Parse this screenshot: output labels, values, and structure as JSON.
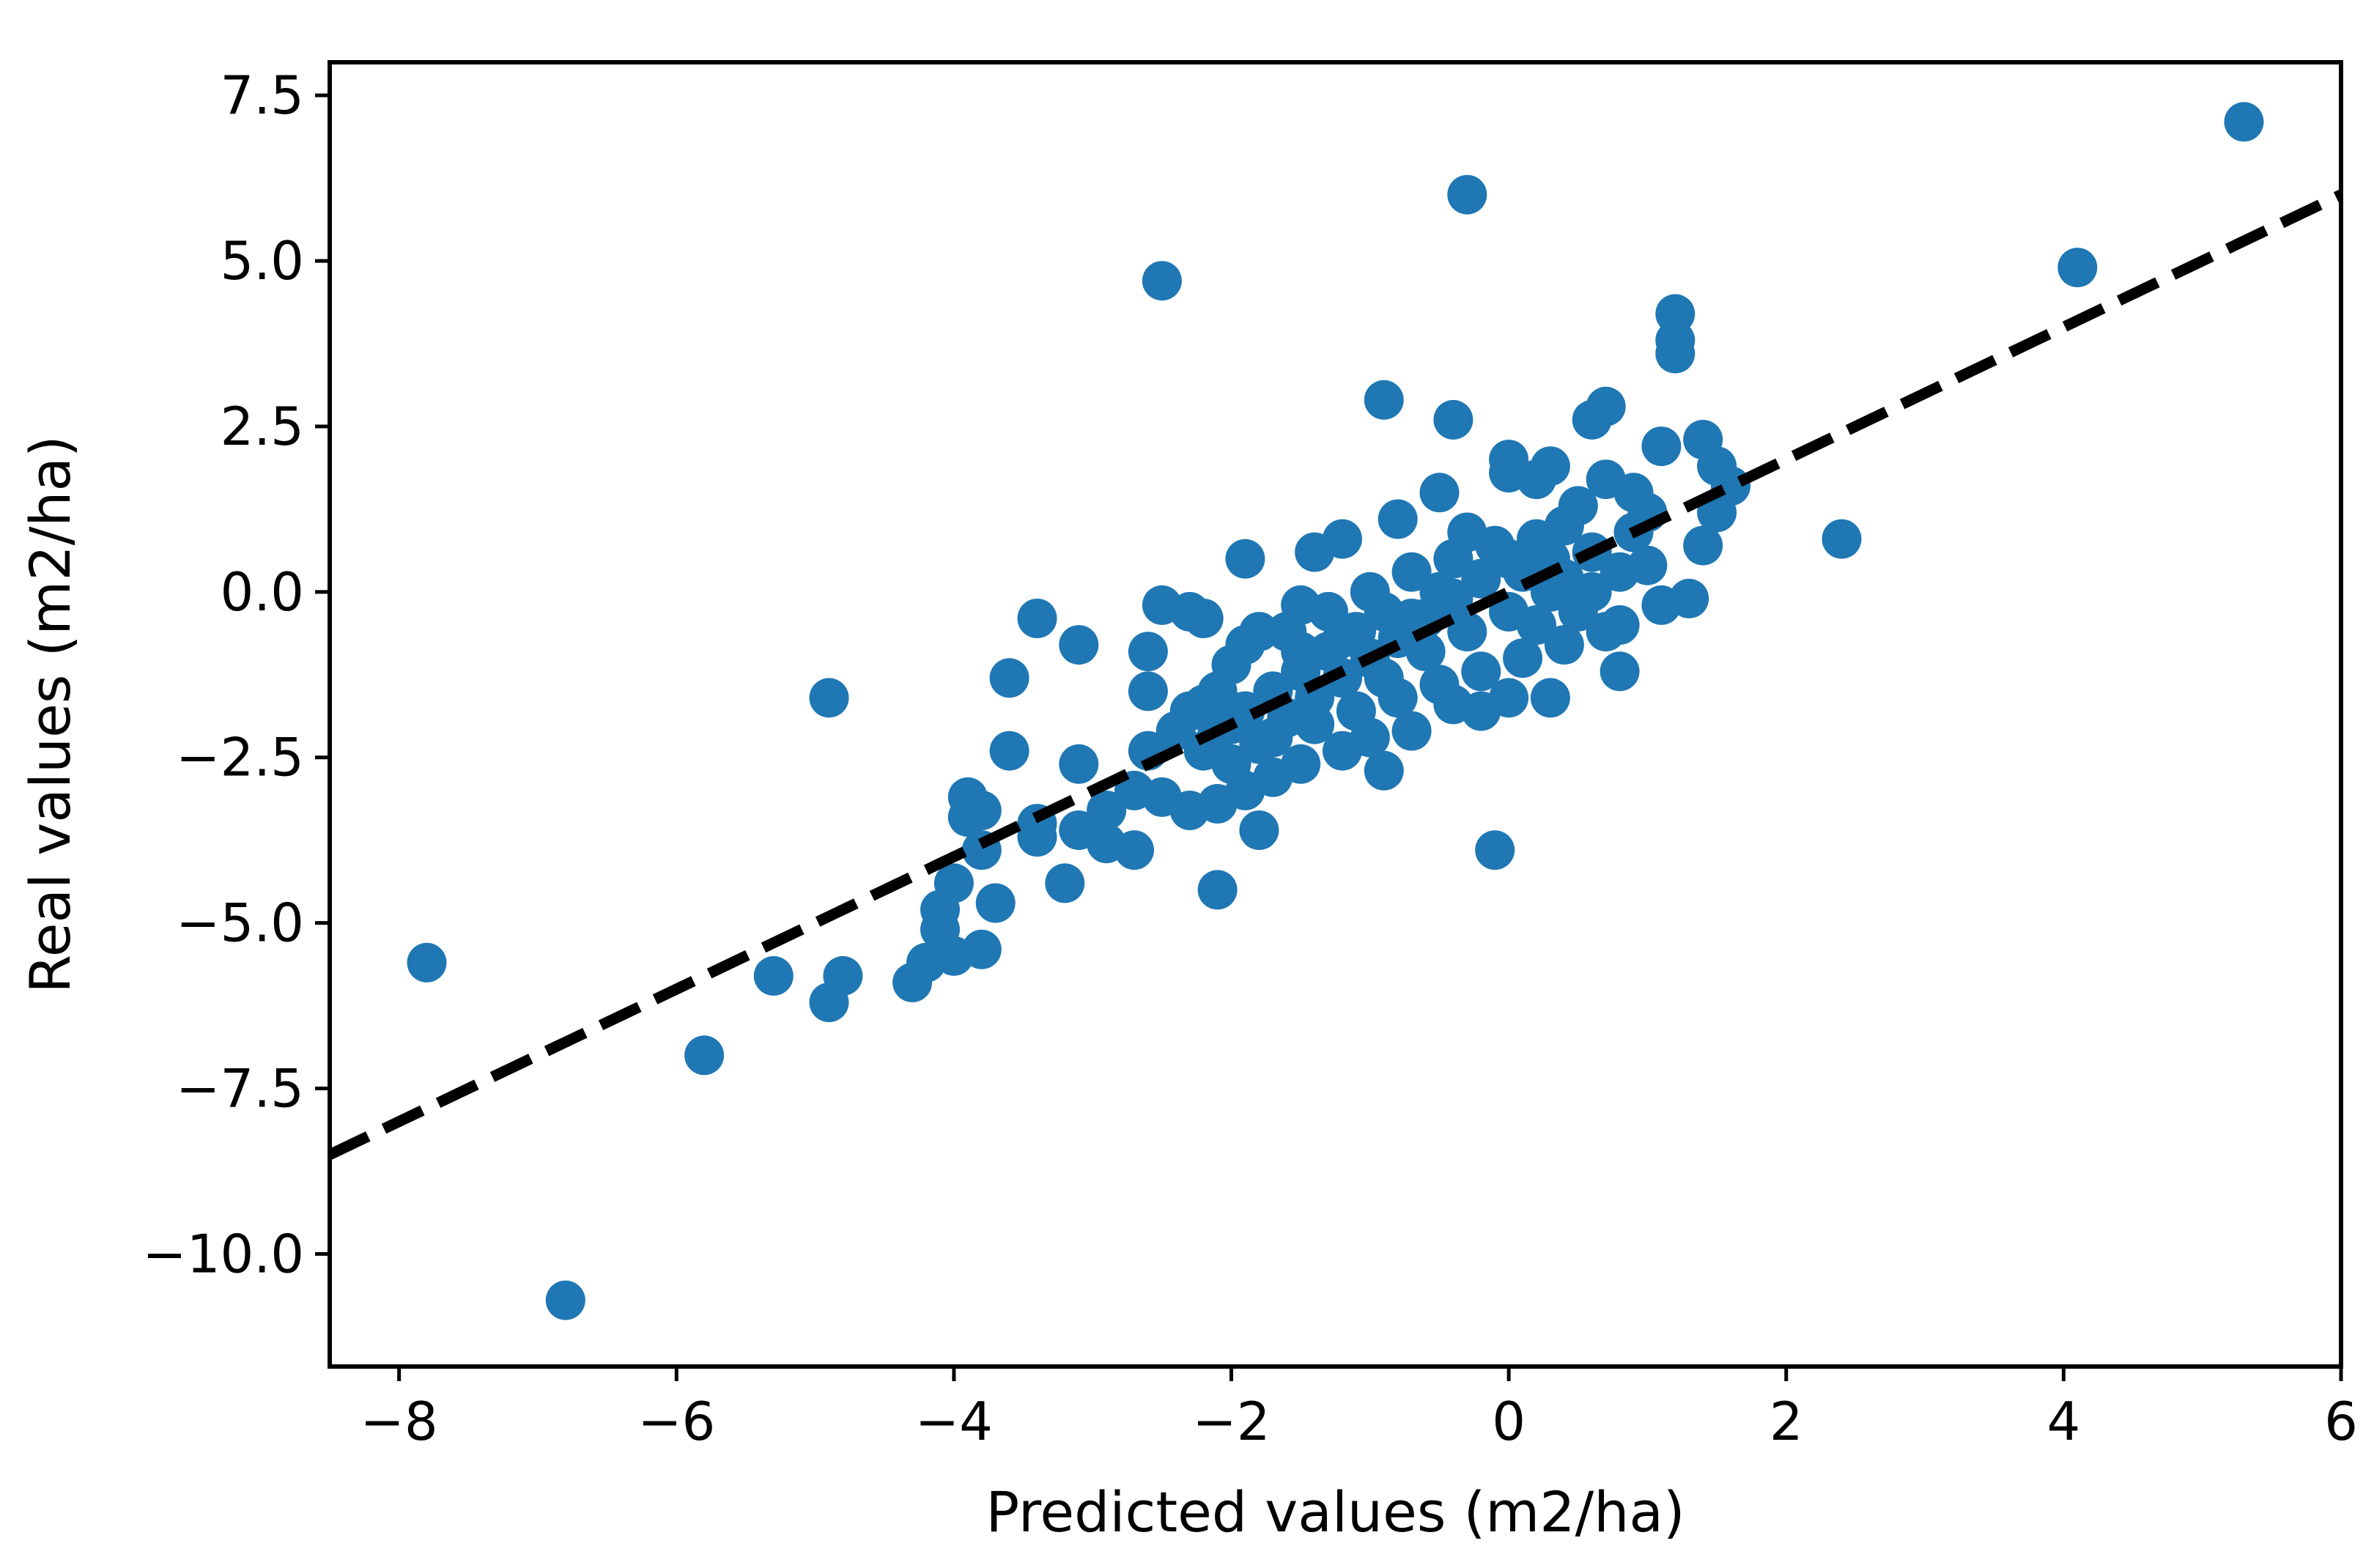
{
  "chart_data": {
    "type": "scatter",
    "title": "",
    "xlabel": "Predicted values (m2/ha)",
    "ylabel": "Real values (m2/ha)",
    "xlim": [
      -8.5,
      6.0
    ],
    "ylim": [
      -11.7,
      8.0
    ],
    "xticks": [
      -8,
      -6,
      -4,
      -2,
      0,
      2,
      4,
      6
    ],
    "xtick_labels": [
      "−8",
      "−6",
      "−4",
      "−2",
      "0",
      "2",
      "4",
      "6"
    ],
    "yticks": [
      -10.0,
      -7.5,
      -5.0,
      -2.5,
      0.0,
      2.5,
      5.0,
      7.5
    ],
    "ytick_labels": [
      "−10.0",
      "−7.5",
      "−5.0",
      "−2.5",
      "0.0",
      "2.5",
      "5.0",
      "7.5"
    ],
    "grid": false,
    "colors": {
      "points": "#1f77b4",
      "line": "#000000"
    },
    "reference_line": {
      "style": "dashed",
      "slope": 1.0,
      "intercept": 0.0
    },
    "series": [
      {
        "name": "samples",
        "points": [
          [
            5.3,
            7.1
          ],
          [
            4.1,
            4.9
          ],
          [
            -0.3,
            6.0
          ],
          [
            -2.5,
            4.7
          ],
          [
            2.4,
            0.8
          ],
          [
            -7.8,
            -5.6
          ],
          [
            -6.8,
            -10.7
          ],
          [
            -5.8,
            -7.0
          ],
          [
            -4.9,
            -1.6
          ],
          [
            -4.9,
            -6.2
          ],
          [
            -5.3,
            -5.8
          ],
          [
            -4.8,
            -5.8
          ],
          [
            -4.3,
            -5.9
          ],
          [
            -4.2,
            -5.6
          ],
          [
            -4.0,
            -5.5
          ],
          [
            -3.8,
            -5.4
          ],
          [
            -3.7,
            -4.7
          ],
          [
            -4.1,
            -5.1
          ],
          [
            -4.1,
            -4.8
          ],
          [
            -4.0,
            -4.4
          ],
          [
            -3.8,
            -3.9
          ],
          [
            -3.9,
            -3.4
          ],
          [
            -3.9,
            -3.1
          ],
          [
            -3.8,
            -3.3
          ],
          [
            -3.6,
            -2.4
          ],
          [
            -3.6,
            -1.3
          ],
          [
            -3.4,
            -0.4
          ],
          [
            -3.1,
            -0.8
          ],
          [
            -3.4,
            -3.5
          ],
          [
            -3.4,
            -3.7
          ],
          [
            -3.2,
            -4.4
          ],
          [
            -3.1,
            -3.6
          ],
          [
            -2.9,
            -3.8
          ],
          [
            -2.7,
            -3.9
          ],
          [
            -2.9,
            -3.3
          ],
          [
            -3.1,
            -2.6
          ],
          [
            -2.6,
            -2.4
          ],
          [
            -2.6,
            -1.5
          ],
          [
            -2.6,
            -0.9
          ],
          [
            -2.5,
            -0.2
          ],
          [
            -2.3,
            -0.3
          ],
          [
            -2.2,
            -0.4
          ],
          [
            -1.9,
            0.5
          ],
          [
            -1.8,
            -3.6
          ],
          [
            -2.1,
            -4.5
          ],
          [
            -0.9,
            2.9
          ],
          [
            -0.4,
            2.6
          ],
          [
            0.6,
            2.6
          ],
          [
            0.7,
            2.8
          ],
          [
            1.2,
            4.2
          ],
          [
            1.2,
            3.8
          ],
          [
            1.2,
            3.6
          ],
          [
            1.4,
            2.3
          ],
          [
            1.1,
            2.2
          ],
          [
            1.5,
            1.9
          ],
          [
            1.6,
            1.6
          ],
          [
            1.5,
            1.2
          ],
          [
            1.4,
            0.7
          ],
          [
            1.3,
            -0.1
          ],
          [
            1.1,
            -0.2
          ],
          [
            0.8,
            -0.5
          ],
          [
            0.8,
            -1.2
          ],
          [
            -0.1,
            -3.9
          ],
          [
            -0.9,
            -2.7
          ],
          [
            0.3,
            -1.6
          ],
          [
            0.0,
            -1.6
          ],
          [
            -0.2,
            -1.8
          ],
          [
            -0.4,
            -1.7
          ],
          [
            -0.7,
            -2.1
          ],
          [
            -1.0,
            -2.2
          ],
          [
            -1.2,
            -2.4
          ],
          [
            -1.5,
            -2.6
          ],
          [
            -1.7,
            -2.8
          ],
          [
            -1.9,
            -3.0
          ],
          [
            -2.1,
            -3.2
          ],
          [
            -2.3,
            -3.3
          ],
          [
            -2.5,
            -3.1
          ],
          [
            -2.7,
            -3.0
          ],
          [
            -1.4,
            0.6
          ],
          [
            -0.8,
            1.1
          ],
          [
            -0.5,
            1.5
          ],
          [
            -0.3,
            0.9
          ],
          [
            0.0,
            1.8
          ],
          [
            0.0,
            2.0
          ],
          [
            0.2,
            1.7
          ],
          [
            0.3,
            1.9
          ],
          [
            0.5,
            1.3
          ],
          [
            0.7,
            1.7
          ],
          [
            0.9,
            1.5
          ],
          [
            1.0,
            1.2
          ],
          [
            -1.2,
            0.8
          ],
          [
            -1.5,
            -0.2
          ],
          [
            -1.8,
            -0.6
          ],
          [
            -1.9,
            -0.8
          ],
          [
            -2.0,
            -1.1
          ],
          [
            -2.1,
            -1.5
          ],
          [
            -2.3,
            -1.8
          ],
          [
            -2.4,
            -2.1
          ],
          [
            -2.2,
            -2.4
          ],
          [
            -2.0,
            -2.6
          ],
          [
            -1.8,
            -2.3
          ],
          [
            -1.6,
            -1.9
          ],
          [
            -1.4,
            -1.6
          ],
          [
            -1.2,
            -1.3
          ],
          [
            -1.0,
            -1.0
          ],
          [
            -0.8,
            -0.7
          ],
          [
            -0.6,
            -0.4
          ],
          [
            -0.4,
            -0.1
          ],
          [
            -0.2,
            0.2
          ],
          [
            0.0,
            0.5
          ],
          [
            0.2,
            0.8
          ],
          [
            0.4,
            1.0
          ],
          [
            0.6,
            0.6
          ],
          [
            0.8,
            0.3
          ],
          [
            1.0,
            0.4
          ],
          [
            0.9,
            0.9
          ],
          [
            -0.9,
            -0.3
          ],
          [
            -1.1,
            -0.6
          ],
          [
            -1.3,
            -0.9
          ],
          [
            -1.5,
            -1.2
          ],
          [
            -1.7,
            -1.5
          ],
          [
            -1.9,
            -1.8
          ],
          [
            -2.1,
            -2.1
          ],
          [
            -1.6,
            -0.6
          ],
          [
            -1.3,
            -0.3
          ],
          [
            -1.0,
            0.0
          ],
          [
            -0.7,
            0.3
          ],
          [
            -0.4,
            0.5
          ],
          [
            -0.1,
            0.7
          ],
          [
            0.1,
            0.3
          ],
          [
            0.3,
            0.0
          ],
          [
            0.5,
            -0.3
          ],
          [
            0.7,
            -0.6
          ],
          [
            0.4,
            -0.8
          ],
          [
            0.1,
            -1.0
          ],
          [
            -0.2,
            -1.2
          ],
          [
            -0.5,
            -1.4
          ],
          [
            -0.8,
            -1.6
          ],
          [
            -1.1,
            -1.8
          ],
          [
            -1.4,
            -2.0
          ],
          [
            -1.7,
            -2.2
          ],
          [
            -2.0,
            -2.0
          ],
          [
            -2.2,
            -1.7
          ],
          [
            -1.5,
            -0.9
          ],
          [
            -1.2,
            -0.7
          ],
          [
            -0.9,
            -1.3
          ],
          [
            -0.6,
            -0.9
          ],
          [
            -0.3,
            -0.6
          ],
          [
            0.0,
            -0.3
          ],
          [
            0.2,
            -0.5
          ],
          [
            0.4,
            0.2
          ],
          [
            0.6,
            0.0
          ],
          [
            0.3,
            0.5
          ],
          [
            -0.5,
            0.0
          ],
          [
            -0.7,
            -0.4
          ]
        ]
      }
    ]
  }
}
